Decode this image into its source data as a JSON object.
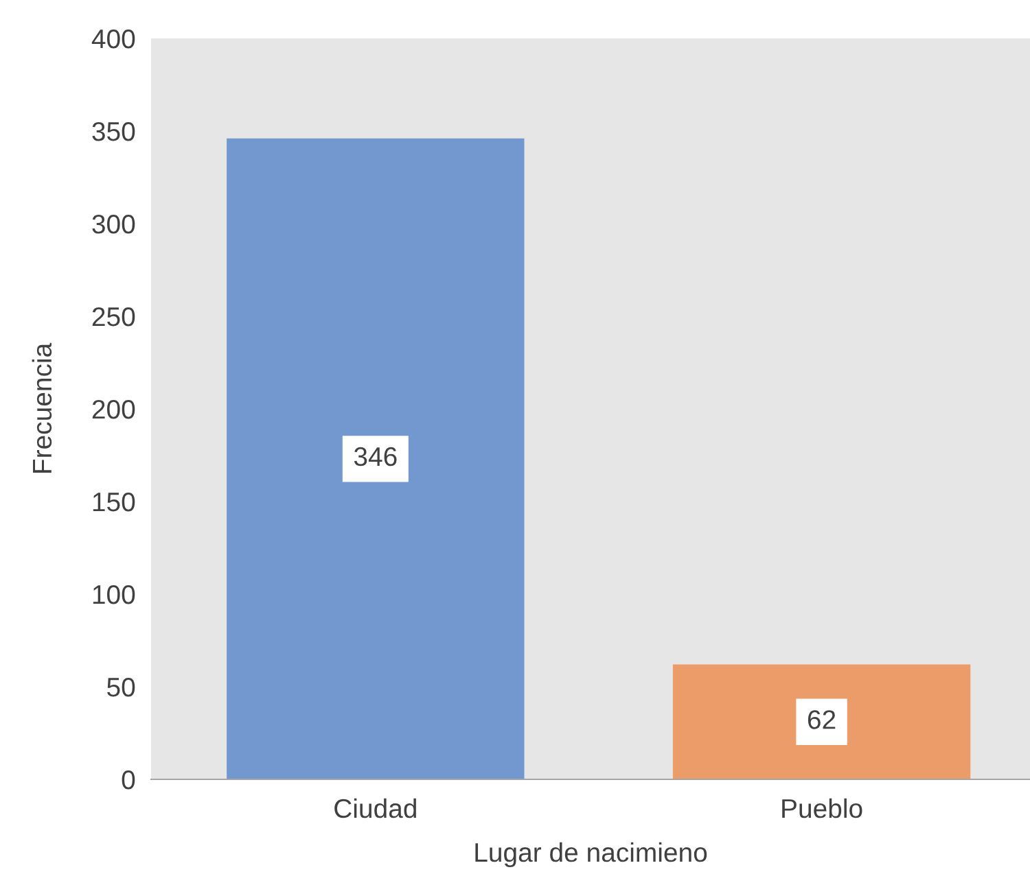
{
  "chart_data": {
    "type": "bar",
    "xlabel": "Lugar de nacimieno",
    "ylabel": "Frecuencia",
    "categories": [
      "Ciudad",
      "Pueblo"
    ],
    "values": [
      346,
      62
    ],
    "colors": [
      "#7398d0",
      "#ec9c68"
    ],
    "ylim": [
      0,
      400
    ],
    "yticks": [
      0,
      50,
      100,
      150,
      200,
      250,
      300,
      350,
      400
    ],
    "data_labels": true,
    "grid": false
  }
}
